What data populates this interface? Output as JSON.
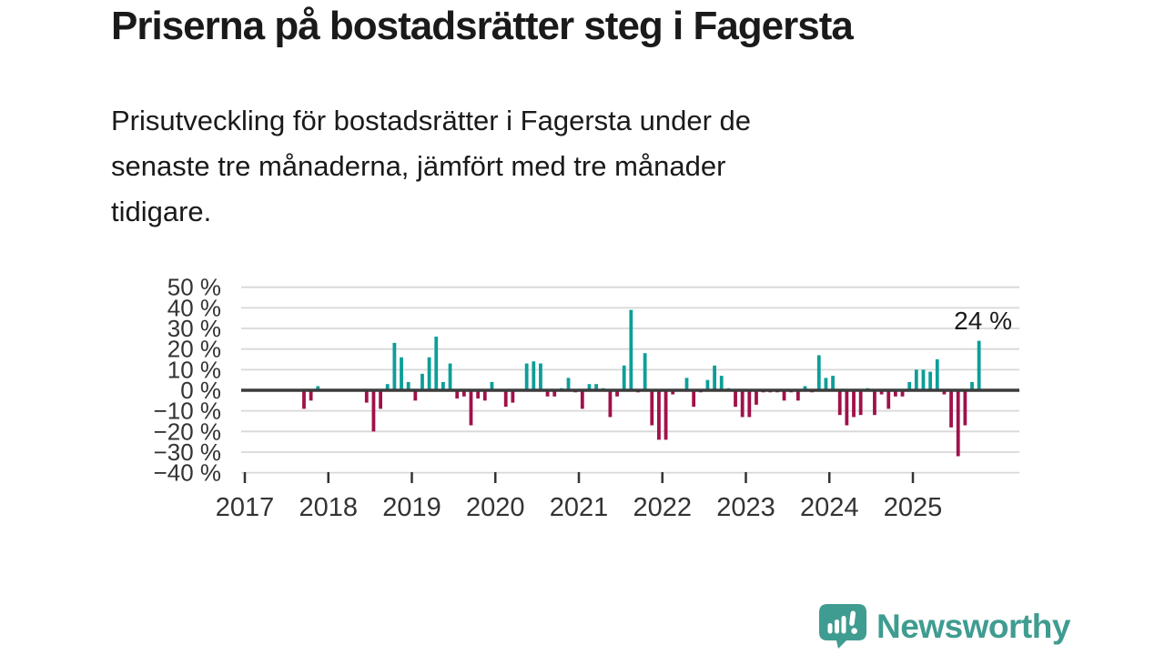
{
  "header": {
    "title": "Priserna på bostadsrätter steg i Fagersta",
    "subtitle_lines": [
      "Prisutveckling för bostadsrätter i Fagersta under de",
      "senaste tre månaderna, jämfört med tre månader",
      "tidigare."
    ]
  },
  "chart_data": {
    "type": "bar",
    "title": "Priserna på bostadsrätter steg i Fagersta",
    "unit": "%",
    "frequency": "monthly",
    "start_month": "2017-01",
    "end_month": "2025-10",
    "values": [
      0,
      0,
      0,
      0,
      0,
      0,
      0,
      0,
      -9,
      -5,
      2,
      0,
      0,
      0,
      0,
      0,
      0,
      -6,
      -20,
      -9,
      3,
      23,
      16,
      4,
      -5,
      8,
      16,
      26,
      4,
      13,
      -4,
      -3,
      -17,
      -4,
      -5,
      4,
      0,
      -8,
      -6,
      0,
      13,
      14,
      13,
      -3,
      -3,
      1,
      6,
      -1,
      -9,
      3,
      3,
      1,
      -13,
      -3,
      12,
      39,
      -1,
      18,
      -17,
      -24,
      -24,
      -2,
      0,
      6,
      -8,
      -1,
      5,
      12,
      7,
      1,
      -8,
      -13,
      -13,
      -7,
      -1,
      -1,
      -1,
      -5,
      -1,
      -5,
      2,
      -1,
      17,
      6,
      7,
      -12,
      -17,
      -13,
      -12,
      1,
      -12,
      -2,
      -9,
      -3,
      -3,
      4,
      10,
      10,
      9,
      15,
      -2,
      -18,
      -32,
      -17,
      4,
      24
    ],
    "x_tick_labels": [
      "2017",
      "2018",
      "2019",
      "2020",
      "2021",
      "2022",
      "2023",
      "2024",
      "2025"
    ],
    "y_ticks": [
      50,
      40,
      30,
      20,
      10,
      0,
      -10,
      -20,
      -30,
      -40
    ],
    "y_tick_labels": [
      "50 %",
      "40 %",
      "30 %",
      "20 %",
      "10 %",
      "0 %",
      "−10 %",
      "−20 %",
      "−30 %",
      "−40 %"
    ],
    "ylim": [
      -40,
      50
    ],
    "grid": "horizontal",
    "legend": "none",
    "annotation": "24 %",
    "colors": {
      "positive": "#0d9e98",
      "negative": "#a0114a",
      "axis": "#3b3b3b",
      "grid": "#d8d8d8",
      "tick_text": "#333333"
    }
  },
  "footer": {
    "brand": "Newsworthy",
    "brand_color": "#3f9c90"
  }
}
